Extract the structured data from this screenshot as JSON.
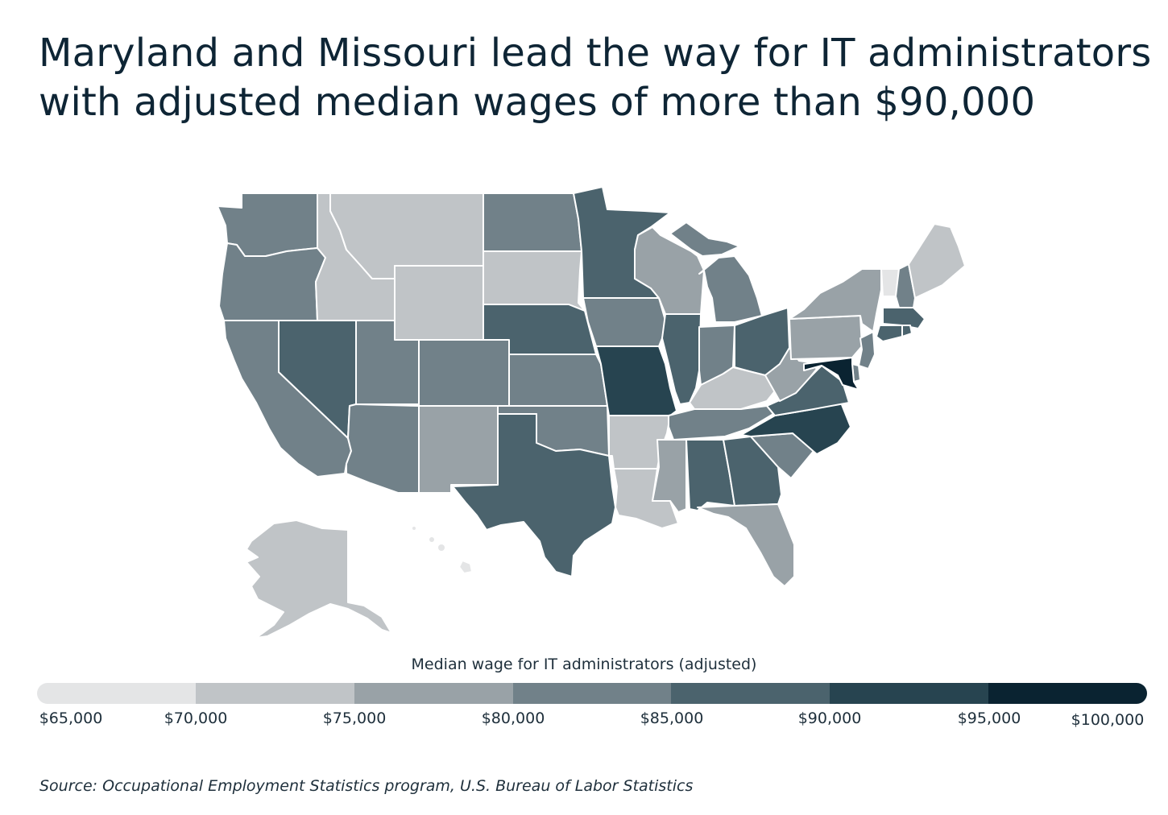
{
  "title_lines": [
    "Maryland and Missouri lead the way for IT administrators",
    "with adjusted median wages of more than $90,000"
  ],
  "legend": {
    "title": "Median wage for IT administrators (adjusted)",
    "ticks": [
      "$65,000",
      "$70,000",
      "$75,000",
      "$80,000",
      "$85,000",
      "$90,000",
      "$95,000",
      "$100,000"
    ],
    "colors": [
      "#e4e5e6",
      "#c0c4c7",
      "#99a2a7",
      "#718189",
      "#4b636d",
      "#274450",
      "#0a2331"
    ]
  },
  "source": "Source: Occupational Employment Statistics program, U.S. Bureau of Labor Statistics",
  "chart_data": {
    "type": "choropleth",
    "metric": "Median wage for IT administrators (adjusted)",
    "bins": [
      {
        "range": [
          "$65,000",
          "$70,000"
        ],
        "color": "#e4e5e6"
      },
      {
        "range": [
          "$70,000",
          "$75,000"
        ],
        "color": "#c0c4c7"
      },
      {
        "range": [
          "$75,000",
          "$80,000"
        ],
        "color": "#99a2a7"
      },
      {
        "range": [
          "$80,000",
          "$85,000"
        ],
        "color": "#718189"
      },
      {
        "range": [
          "$85,000",
          "$90,000"
        ],
        "color": "#4b636d"
      },
      {
        "range": [
          "$90,000",
          "$95,000"
        ],
        "color": "#274450"
      },
      {
        "range": [
          "$95,000",
          "$100,000"
        ],
        "color": "#0a2331"
      }
    ],
    "states": {
      "WA": 3,
      "OR": 3,
      "CA": 3,
      "NV": 4,
      "ID": 1,
      "MT": 1,
      "WY": 1,
      "UT": 3,
      "AZ": 3,
      "CO": 3,
      "NM": 2,
      "ND": 3,
      "SD": 1,
      "NE": 4,
      "KS": 3,
      "OK": 3,
      "TX": 4,
      "MN": 4,
      "IA": 3,
      "MO": 5,
      "AR": 1,
      "LA": 1,
      "WI": 2,
      "IL": 4,
      "MI": 3,
      "IN": 3,
      "OH": 4,
      "KY": 1,
      "TN": 3,
      "MS": 2,
      "AL": 4,
      "GA": 4,
      "FL": 2,
      "SC": 3,
      "NC": 5,
      "VA": 4,
      "WV": 2,
      "PA": 2,
      "NY": 2,
      "VT": 0,
      "NH": 3,
      "ME": 1,
      "MA": 4,
      "CT": 4,
      "RI": 4,
      "NJ": 3,
      "DE": 3,
      "MD": 6,
      "AK": 1,
      "HI": 0
    }
  }
}
